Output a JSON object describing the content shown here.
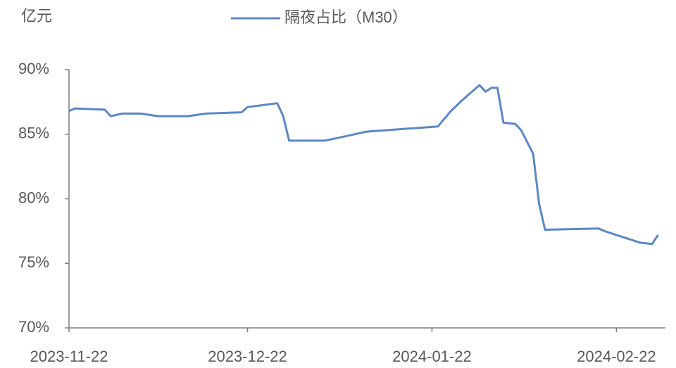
{
  "chart_data": {
    "type": "line",
    "unit_label": "亿元",
    "x": [
      "2023-11-22",
      "2023-11-23",
      "2023-11-28",
      "2023-11-29",
      "2023-12-01",
      "2023-12-04",
      "2023-12-07",
      "2023-12-12",
      "2023-12-15",
      "2023-12-21",
      "2023-12-22",
      "2023-12-27",
      "2023-12-28",
      "2023-12-29",
      "2024-01-04",
      "2024-01-06",
      "2024-01-11",
      "2024-01-17",
      "2024-01-20",
      "2024-01-23",
      "2024-01-25",
      "2024-01-27",
      "2024-01-30",
      "2024-01-31",
      "2024-02-01",
      "2024-02-02",
      "2024-02-03",
      "2024-02-05",
      "2024-02-06",
      "2024-02-08",
      "2024-02-09",
      "2024-02-10",
      "2024-02-19",
      "2024-02-20",
      "2024-02-22",
      "2024-02-24",
      "2024-02-26",
      "2024-02-28",
      "2024-02-29"
    ],
    "series": [
      {
        "name": "隔夜占比（M30）",
        "color": "#5b87c5",
        "values": [
          86.8,
          87.0,
          86.9,
          86.4,
          86.6,
          86.6,
          86.4,
          86.4,
          86.6,
          86.7,
          87.1,
          87.4,
          86.4,
          84.5,
          84.5,
          84.7,
          85.2,
          85.4,
          85.5,
          85.6,
          86.7,
          87.6,
          88.8,
          88.3,
          88.6,
          88.6,
          85.9,
          85.8,
          85.3,
          83.5,
          79.6,
          77.6,
          77.7,
          77.5,
          77.2,
          76.9,
          76.6,
          76.5,
          77.2
        ]
      }
    ],
    "xlim": [
      "2023-11-22",
      "2024-03-01"
    ],
    "xticks": [
      "2023-11-22",
      "2023-12-22",
      "2024-01-22",
      "2024-02-22"
    ],
    "ylim": [
      70,
      90
    ],
    "yticks": [
      {
        "value": 70,
        "label": "70%"
      },
      {
        "value": 75,
        "label": "75%"
      },
      {
        "value": 80,
        "label": "80%"
      },
      {
        "value": 85,
        "label": "85%"
      },
      {
        "value": 90,
        "label": "90%"
      }
    ],
    "legend": "top"
  }
}
